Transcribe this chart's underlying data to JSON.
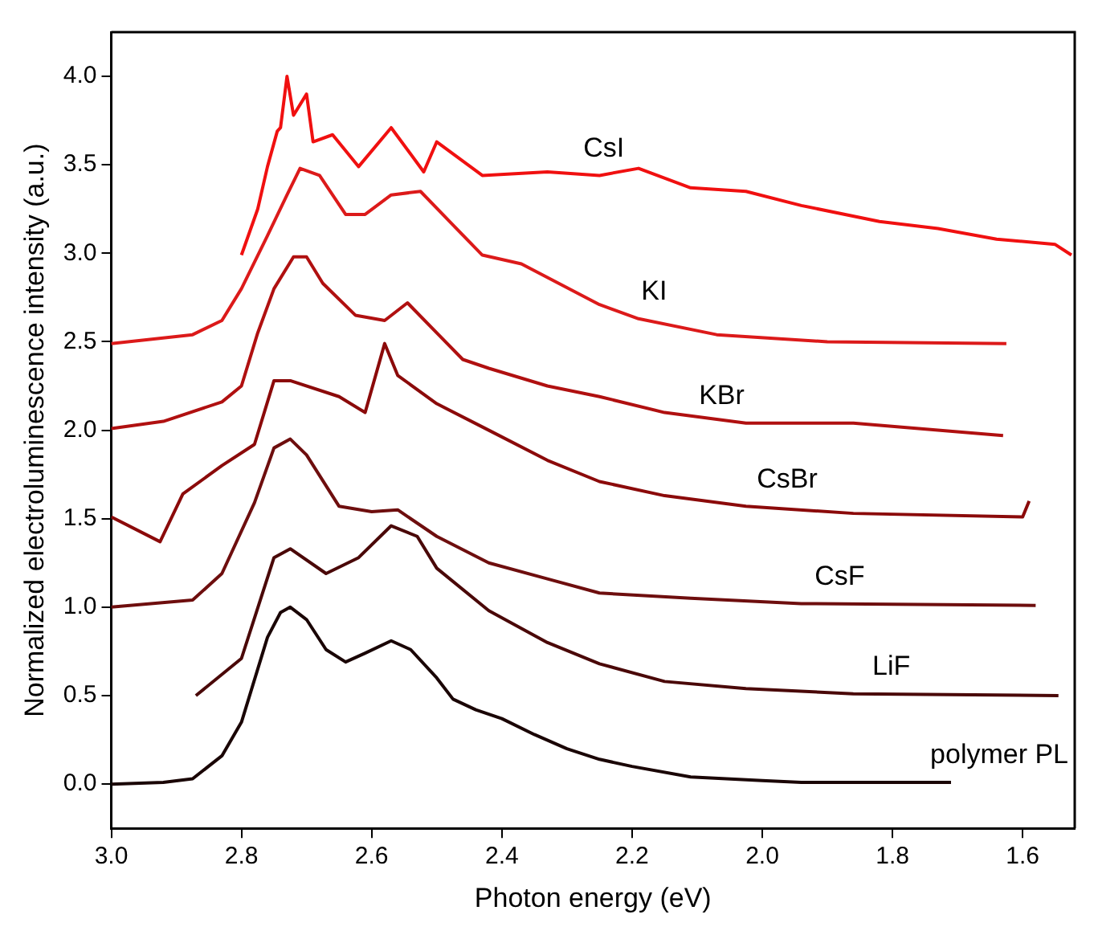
{
  "chart_data": {
    "type": "line",
    "xlabel": "Photon energy (eV)",
    "ylabel": "Normalized electroluminescence intensity (a.u.)",
    "xlim": [
      3.0,
      1.52
    ],
    "ylim": [
      -0.25,
      4.25
    ],
    "xticks": [
      {
        "value": 3.0,
        "label": "3.0"
      },
      {
        "value": 2.8,
        "label": "2.8"
      },
      {
        "value": 2.6,
        "label": "2.6"
      },
      {
        "value": 2.4,
        "label": "2.4"
      },
      {
        "value": 2.2,
        "label": "2.2"
      },
      {
        "value": 2.0,
        "label": "2.0"
      },
      {
        "value": 1.8,
        "label": "1.8"
      },
      {
        "value": 1.6,
        "label": "1.6"
      }
    ],
    "yticks": [
      {
        "value": 0,
        "label": "0.0"
      },
      {
        "value": 0.5,
        "label": "0.5"
      },
      {
        "value": 1.0,
        "label": "1.0"
      },
      {
        "value": 1.5,
        "label": "1.5"
      },
      {
        "value": 2.0,
        "label": "2.0"
      },
      {
        "value": 2.5,
        "label": "2.5"
      },
      {
        "value": 3.0,
        "label": "3.0"
      },
      {
        "value": 3.5,
        "label": "3.5"
      },
      {
        "value": 4.0,
        "label": "4.0"
      }
    ],
    "grid": false,
    "legend": false,
    "marker": "none",
    "line_style": "solid",
    "series": [
      {
        "name": "CsI",
        "color": "#f01010",
        "x": [
          2.8,
          2.775,
          2.76,
          2.745,
          2.74,
          2.73,
          2.72,
          2.7,
          2.69,
          2.66,
          2.62,
          2.57,
          2.52,
          2.5,
          2.43,
          2.33,
          2.25,
          2.19,
          2.11,
          2.025,
          1.94,
          1.82,
          1.73,
          1.64,
          1.55,
          1.525
        ],
        "values": [
          2.99,
          3.25,
          3.49,
          3.69,
          3.71,
          4.0,
          3.78,
          3.9,
          3.63,
          3.67,
          3.49,
          3.71,
          3.46,
          3.63,
          3.44,
          3.46,
          3.44,
          3.48,
          3.37,
          3.35,
          3.27,
          3.18,
          3.14,
          3.08,
          3.05,
          2.99
        ]
      },
      {
        "name": "KI",
        "color": "#dc1a1a",
        "x": [
          3.0,
          2.875,
          2.83,
          2.8,
          2.76,
          2.73,
          2.71,
          2.68,
          2.64,
          2.61,
          2.57,
          2.525,
          2.475,
          2.43,
          2.37,
          2.25,
          2.19,
          2.07,
          1.9,
          1.625
        ],
        "values": [
          2.49,
          2.54,
          2.62,
          2.8,
          3.1,
          3.33,
          3.48,
          3.44,
          3.22,
          3.22,
          3.33,
          3.35,
          3.16,
          2.99,
          2.94,
          2.71,
          2.63,
          2.54,
          2.5,
          2.49
        ]
      },
      {
        "name": "KBr",
        "color": "#b01010",
        "x": [
          3.0,
          2.92,
          2.83,
          2.8,
          2.775,
          2.75,
          2.72,
          2.7,
          2.675,
          2.625,
          2.58,
          2.545,
          2.5,
          2.46,
          2.42,
          2.33,
          2.25,
          2.15,
          2.025,
          1.86,
          1.63
        ],
        "values": [
          2.01,
          2.05,
          2.16,
          2.25,
          2.55,
          2.8,
          2.98,
          2.98,
          2.83,
          2.65,
          2.62,
          2.72,
          2.55,
          2.4,
          2.35,
          2.25,
          2.19,
          2.1,
          2.04,
          2.04,
          1.97
        ]
      },
      {
        "name": "CsBr",
        "color": "#8b0a0a",
        "x": [
          3.0,
          2.925,
          2.89,
          2.83,
          2.78,
          2.75,
          2.725,
          2.65,
          2.61,
          2.58,
          2.56,
          2.5,
          2.42,
          2.33,
          2.25,
          2.15,
          2.025,
          1.86,
          1.6,
          1.59
        ],
        "values": [
          1.51,
          1.37,
          1.64,
          1.8,
          1.92,
          2.28,
          2.28,
          2.19,
          2.1,
          2.49,
          2.31,
          2.15,
          2.0,
          1.83,
          1.71,
          1.63,
          1.57,
          1.53,
          1.51,
          1.6
        ]
      },
      {
        "name": "CsF",
        "color": "#6e0e0e",
        "x": [
          3.0,
          2.875,
          2.83,
          2.78,
          2.75,
          2.725,
          2.7,
          2.65,
          2.6,
          2.56,
          2.5,
          2.42,
          2.33,
          2.25,
          2.11,
          1.94,
          1.58
        ],
        "values": [
          1.0,
          1.04,
          1.19,
          1.59,
          1.9,
          1.95,
          1.86,
          1.57,
          1.54,
          1.55,
          1.4,
          1.25,
          1.16,
          1.08,
          1.05,
          1.02,
          1.01
        ]
      },
      {
        "name": "LiF",
        "color": "#4a0808",
        "x": [
          2.87,
          2.8,
          2.75,
          2.725,
          2.67,
          2.62,
          2.57,
          2.53,
          2.5,
          2.42,
          2.33,
          2.25,
          2.15,
          2.025,
          1.86,
          1.545
        ],
        "values": [
          0.5,
          0.71,
          1.28,
          1.33,
          1.19,
          1.28,
          1.46,
          1.4,
          1.22,
          0.98,
          0.8,
          0.68,
          0.58,
          0.54,
          0.51,
          0.5
        ]
      },
      {
        "name": "polymer PL",
        "color": "#1a0505",
        "x": [
          3.0,
          2.92,
          2.875,
          2.83,
          2.8,
          2.76,
          2.74,
          2.725,
          2.7,
          2.67,
          2.64,
          2.61,
          2.57,
          2.54,
          2.5,
          2.475,
          2.44,
          2.4,
          2.35,
          2.3,
          2.25,
          2.2,
          2.11,
          2.0,
          1.94,
          1.71
        ],
        "values": [
          0.0,
          0.01,
          0.03,
          0.16,
          0.35,
          0.83,
          0.97,
          1.0,
          0.93,
          0.76,
          0.69,
          0.74,
          0.81,
          0.76,
          0.6,
          0.48,
          0.42,
          0.37,
          0.28,
          0.2,
          0.14,
          0.1,
          0.04,
          0.02,
          0.01,
          0.01
        ]
      }
    ]
  }
}
